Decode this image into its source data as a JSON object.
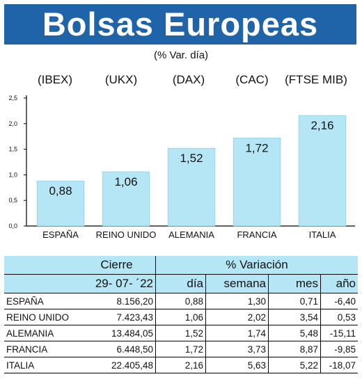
{
  "header": {
    "title": "Bolsas Europeas",
    "subtitle": "(% Var. día)"
  },
  "chart_data": {
    "type": "bar",
    "categories": [
      "ESPAÑA",
      "REINO UNIDO",
      "ALEMANIA",
      "FRANCIA",
      "ITALIA"
    ],
    "index_labels": [
      "(IBEX)",
      "(UKX)",
      "(DAX)",
      "(CAC)",
      "(FTSE MIB)"
    ],
    "values": [
      0.88,
      1.06,
      1.52,
      1.72,
      2.16
    ],
    "value_labels": [
      "0,88",
      "1,06",
      "1,52",
      "1,72",
      "2,16"
    ],
    "yticks": [
      "0,0",
      "0,5",
      "1,0",
      "1,5",
      "2,0",
      "2,5"
    ],
    "ylim": [
      0,
      2.5
    ],
    "bar_color": "#b5e6f6",
    "grid": false
  },
  "table": {
    "header_close": "Cierre",
    "header_variation": "% Variación",
    "date": "29- 07- ´22",
    "columns": [
      "día",
      "semana",
      "mes",
      "año"
    ],
    "rows": [
      {
        "name": "ESPAÑA",
        "close": "8.156,20",
        "dia": "0,88",
        "semana": "1,30",
        "mes": "0,71",
        "ano": "-6,40"
      },
      {
        "name": "REINO UNIDO",
        "close": "7.423,43",
        "dia": "1,06",
        "semana": "2,02",
        "mes": "3,54",
        "ano": "0,53"
      },
      {
        "name": "ALEMANIA",
        "close": "13.484,05",
        "dia": "1,52",
        "semana": "1,74",
        "mes": "5,48",
        "ano": "-15,11"
      },
      {
        "name": "FRANCIA",
        "close": "6.448,50",
        "dia": "1,72",
        "semana": "3,73",
        "mes": "8,87",
        "ano": "-9,85"
      },
      {
        "name": "ITALIA",
        "close": "22.405,48",
        "dia": "2,16",
        "semana": "5,63",
        "mes": "5,22",
        "ano": "-18,07"
      }
    ]
  },
  "colors": {
    "banner": "#1f63a8",
    "accent": "#b5e6f6"
  }
}
